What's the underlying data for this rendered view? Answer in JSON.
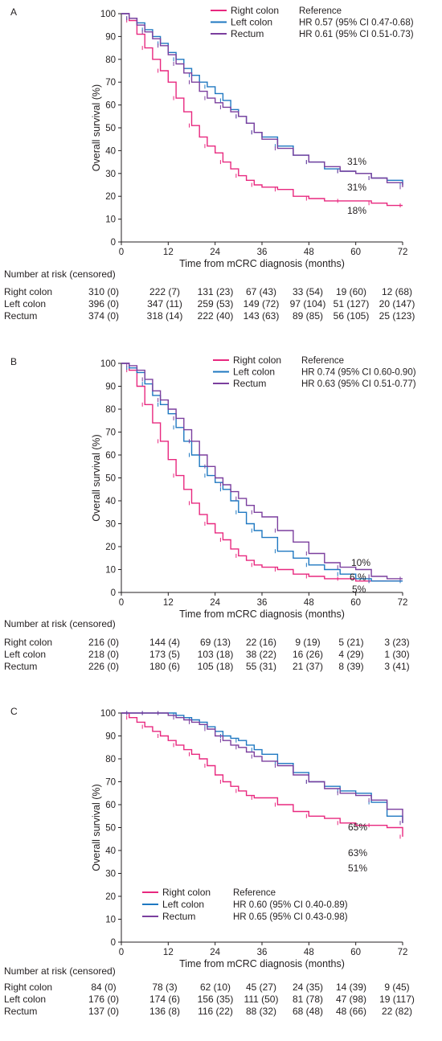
{
  "colors": {
    "right_colon": "#e8287f",
    "left_colon": "#1f78c1",
    "rectum": "#7b3f9e",
    "axis": "#231f20"
  },
  "chart_data": [
    {
      "type": "line",
      "panel": "A",
      "xlabel": "Time from mCRC diagnosis (months)",
      "ylabel": "Overall survival (%)",
      "xlim": [
        0,
        72
      ],
      "ylim": [
        0,
        100
      ],
      "xticks": [
        0,
        12,
        24,
        36,
        48,
        60,
        72
      ],
      "yticks": [
        0,
        10,
        20,
        30,
        40,
        50,
        60,
        70,
        80,
        90,
        100
      ],
      "legend": [
        {
          "name": "Right colon",
          "hr": "Reference"
        },
        {
          "name": "Left colon",
          "hr": "HR 0.57 (95% CI 0.47-0.68)"
        },
        {
          "name": "Rectum",
          "hr": "HR 0.61 (95% CI 0.51-0.73)"
        }
      ],
      "series": [
        {
          "name": "Right colon",
          "x": [
            0,
            2,
            4,
            6,
            8,
            10,
            12,
            14,
            16,
            18,
            20,
            22,
            24,
            26,
            28,
            30,
            32,
            34,
            36,
            40,
            44,
            48,
            52,
            56,
            60,
            64,
            68,
            72
          ],
          "y": [
            100,
            97,
            91,
            85,
            80,
            75,
            70,
            63,
            57,
            51,
            46,
            42,
            39,
            35,
            32,
            29,
            27,
            25,
            24,
            23,
            20,
            19,
            18,
            18,
            18,
            17,
            16,
            16
          ]
        },
        {
          "name": "Left colon",
          "x": [
            0,
            2,
            4,
            6,
            8,
            10,
            12,
            14,
            16,
            18,
            20,
            22,
            24,
            26,
            28,
            30,
            32,
            34,
            36,
            40,
            44,
            48,
            52,
            56,
            60,
            64,
            68,
            72
          ],
          "y": [
            100,
            98,
            96,
            93,
            90,
            87,
            83,
            80,
            76,
            73,
            70,
            68,
            65,
            62,
            58,
            55,
            52,
            48,
            46,
            42,
            38,
            35,
            32,
            31,
            30,
            28,
            27,
            25
          ]
        },
        {
          "name": "Rectum",
          "x": [
            0,
            2,
            4,
            6,
            8,
            10,
            12,
            14,
            16,
            18,
            20,
            22,
            24,
            26,
            28,
            30,
            32,
            34,
            36,
            40,
            44,
            48,
            52,
            56,
            60,
            64,
            68,
            72
          ],
          "y": [
            100,
            98,
            95,
            92,
            89,
            86,
            82,
            78,
            74,
            70,
            66,
            63,
            61,
            59,
            57,
            55,
            52,
            48,
            45,
            41,
            38,
            35,
            33,
            31,
            30,
            28,
            26,
            24
          ]
        }
      ],
      "annotations": [
        "31%",
        "31%",
        "18%"
      ],
      "risk_title": "Number at risk (censored)",
      "risk_table": [
        {
          "group": "Right colon",
          "values": [
            "310 (0)",
            "222 (7)",
            "131 (23)",
            "67 (43)",
            "33 (54)",
            "19 (60)",
            "12 (68)"
          ]
        },
        {
          "group": "Left colon",
          "values": [
            "396 (0)",
            "347 (11)",
            "259 (53)",
            "149 (72)",
            "97 (104)",
            "51 (127)",
            "20 (147)"
          ]
        },
        {
          "group": "Rectum",
          "values": [
            "374 (0)",
            "318 (14)",
            "222 (40)",
            "143 (63)",
            "89 (85)",
            "56 (105)",
            "25 (123)"
          ]
        }
      ]
    },
    {
      "type": "line",
      "panel": "B",
      "xlabel": "Time from mCRC diagnosis (months)",
      "ylabel": "Overall survival (%)",
      "xlim": [
        0,
        72
      ],
      "ylim": [
        0,
        100
      ],
      "xticks": [
        0,
        12,
        24,
        36,
        48,
        60,
        72
      ],
      "yticks": [
        0,
        10,
        20,
        30,
        40,
        50,
        60,
        70,
        80,
        90,
        100
      ],
      "legend": [
        {
          "name": "Right colon",
          "hr": "Reference"
        },
        {
          "name": "Left colon",
          "hr": "HR 0.74 (95% CI 0.60-0.90)"
        },
        {
          "name": "Rectum",
          "hr": "HR 0.63 (95% CI 0.51-0.77)"
        }
      ],
      "series": [
        {
          "name": "Right colon",
          "x": [
            0,
            2,
            4,
            6,
            8,
            10,
            12,
            14,
            16,
            18,
            20,
            22,
            24,
            26,
            28,
            30,
            32,
            34,
            36,
            40,
            44,
            48,
            52,
            56,
            60,
            64,
            68,
            72
          ],
          "y": [
            100,
            97,
            90,
            82,
            74,
            66,
            58,
            51,
            45,
            39,
            34,
            30,
            26,
            23,
            19,
            16,
            14,
            12,
            11,
            10,
            8,
            7,
            6,
            6,
            5,
            5,
            5,
            5
          ]
        },
        {
          "name": "Left colon",
          "x": [
            0,
            2,
            4,
            6,
            8,
            10,
            12,
            14,
            16,
            18,
            20,
            22,
            24,
            26,
            28,
            30,
            32,
            34,
            36,
            40,
            44,
            48,
            52,
            56,
            60,
            64,
            68,
            72
          ],
          "y": [
            100,
            98,
            96,
            91,
            86,
            82,
            78,
            72,
            66,
            60,
            55,
            51,
            48,
            45,
            40,
            35,
            30,
            27,
            24,
            18,
            15,
            12,
            10,
            8,
            6,
            5,
            5,
            5
          ]
        },
        {
          "name": "Rectum",
          "x": [
            0,
            2,
            4,
            6,
            8,
            10,
            12,
            14,
            16,
            18,
            20,
            22,
            24,
            26,
            28,
            30,
            32,
            34,
            36,
            40,
            44,
            48,
            52,
            56,
            60,
            64,
            68,
            72
          ],
          "y": [
            100,
            99,
            97,
            93,
            88,
            84,
            80,
            76,
            71,
            66,
            60,
            55,
            50,
            47,
            44,
            41,
            38,
            35,
            33,
            27,
            22,
            17,
            13,
            11,
            10,
            7,
            6,
            6
          ]
        }
      ],
      "annotations": [
        "10%",
        "6 %",
        "5%"
      ],
      "risk_title": "Number at risk (censored)",
      "risk_table": [
        {
          "group": "Right colon",
          "values": [
            "216 (0)",
            "144 (4)",
            "69 (13)",
            "22 (16)",
            "9 (19)",
            "5 (21)",
            "3 (23)"
          ]
        },
        {
          "group": "Left colon",
          "values": [
            "218 (0)",
            "173 (5)",
            "103 (18)",
            "38 (22)",
            "16 (26)",
            "4 (29)",
            "1 (30)"
          ]
        },
        {
          "group": "Rectum",
          "values": [
            "226 (0)",
            "180 (6)",
            "105 (18)",
            "55 (31)",
            "21 (37)",
            "8 (39)",
            "3 (41)"
          ]
        }
      ]
    },
    {
      "type": "line",
      "panel": "C",
      "xlabel": "Time from mCRC diagnosis (months)",
      "ylabel": "Overall survival (%)",
      "xlim": [
        0,
        72
      ],
      "ylim": [
        0,
        100
      ],
      "xticks": [
        0,
        12,
        24,
        36,
        48,
        60,
        72
      ],
      "yticks": [
        0,
        10,
        20,
        30,
        40,
        50,
        60,
        70,
        80,
        90,
        100
      ],
      "legend": [
        {
          "name": "Right colon",
          "hr": "Reference"
        },
        {
          "name": "Left colon",
          "hr": "HR 0.60 (95% CI 0.40-0.89)"
        },
        {
          "name": "Rectum",
          "hr": "HR 0.65 (95% CI 0.43-0.98)"
        }
      ],
      "series": [
        {
          "name": "Right colon",
          "x": [
            0,
            2,
            4,
            6,
            8,
            10,
            12,
            14,
            16,
            18,
            20,
            22,
            24,
            26,
            28,
            30,
            32,
            34,
            36,
            40,
            44,
            48,
            52,
            56,
            60,
            64,
            68,
            72
          ],
          "y": [
            100,
            98,
            96,
            94,
            92,
            90,
            88,
            86,
            84,
            82,
            80,
            77,
            73,
            70,
            68,
            66,
            64,
            63,
            63,
            60,
            57,
            55,
            54,
            52,
            51,
            51,
            50,
            46
          ]
        },
        {
          "name": "Left colon",
          "x": [
            0,
            2,
            4,
            6,
            8,
            10,
            12,
            14,
            16,
            18,
            20,
            22,
            24,
            26,
            28,
            30,
            32,
            34,
            36,
            40,
            44,
            48,
            52,
            56,
            60,
            64,
            68,
            72
          ],
          "y": [
            100,
            100,
            100,
            100,
            100,
            100,
            100,
            99,
            98,
            97,
            96,
            94,
            92,
            90,
            89,
            88,
            86,
            84,
            82,
            78,
            74,
            70,
            68,
            66,
            65,
            61,
            55,
            52
          ]
        },
        {
          "name": "Rectum",
          "x": [
            0,
            2,
            4,
            6,
            8,
            10,
            12,
            14,
            16,
            18,
            20,
            22,
            24,
            26,
            28,
            30,
            32,
            34,
            36,
            40,
            44,
            48,
            52,
            56,
            60,
            64,
            68,
            72
          ],
          "y": [
            100,
            100,
            100,
            100,
            100,
            100,
            99,
            98,
            97,
            96,
            95,
            93,
            90,
            88,
            86,
            85,
            83,
            81,
            79,
            77,
            73,
            70,
            67,
            65,
            64,
            62,
            58,
            52
          ]
        }
      ],
      "annotations": [
        "65%",
        "63%",
        "51%"
      ],
      "risk_title": "Number at risk (censored)",
      "risk_table": [
        {
          "group": "Right colon",
          "values": [
            "84 (0)",
            "78 (3)",
            "62 (10)",
            "45 (27)",
            "24 (35)",
            "14 (39)",
            "9 (45)"
          ]
        },
        {
          "group": "Left colon",
          "values": [
            "176 (0)",
            "174 (6)",
            "156 (35)",
            "111 (50)",
            "81 (78)",
            "47 (98)",
            "19 (117)"
          ]
        },
        {
          "group": "Rectum",
          "values": [
            "137 (0)",
            "136 (8)",
            "116 (22)",
            "88 (32)",
            "68 (48)",
            "48 (66)",
            "22 (82)"
          ]
        }
      ]
    }
  ]
}
